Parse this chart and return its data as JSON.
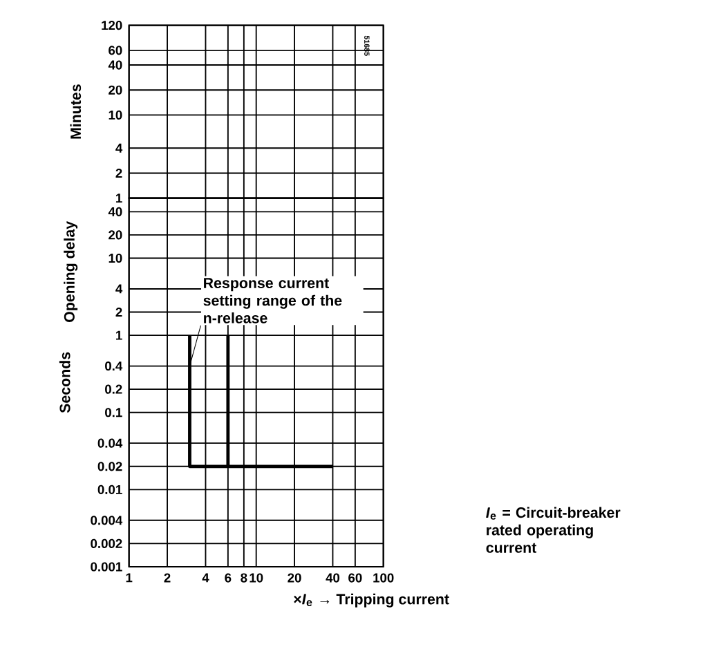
{
  "chart_data": [
    {
      "type": "line",
      "ylabel": null,
      "log": "xy",
      "grid": true,
      "tick_labels": "y",
      "xlim": [
        1,
        100
      ],
      "xticks": [
        1,
        2,
        4,
        6,
        8,
        10,
        20,
        40,
        60,
        100
      ],
      "ylim": [
        1,
        120
      ],
      "yticks": [
        1,
        2,
        4,
        10,
        20,
        40,
        60,
        120
      ],
      "annotations": [
        "Minutes",
        "51685"
      ]
    },
    {
      "type": "line",
      "xlabel": "×*I*$_{e}$ → Tripping current",
      "ylabel": "Opening delay",
      "log": "xy",
      "grid": true,
      "marker": "none",
      "line_style": "solid",
      "xlim": [
        1,
        100
      ],
      "xticks": [
        1,
        2,
        4,
        6,
        8,
        10,
        20,
        40,
        60,
        100
      ],
      "ylim": [
        0.001,
        60
      ],
      "yticks": [
        0.001,
        0.002,
        0.004,
        0.01,
        0.02,
        0.04,
        0.1,
        0.2,
        0.4,
        1,
        2,
        4,
        10,
        20,
        40
      ],
      "series": [
        {
          "color": "#000000",
          "x": [
            3,
            3,
            40
          ],
          "values": [
            1,
            0.02,
            0.02
          ]
        },
        {
          "color": "#000000",
          "x": [
            6,
            6
          ],
          "values": [
            1,
            0.02
          ]
        }
      ],
      "annotations": [
        {
          "text": "Response current setting range of the n-release",
          "x": 3,
          "y": 0.4
        },
        "Seconds",
        "*I*$_{e}$ = Circuit-breaker rated operating current"
      ]
    }
  ]
}
